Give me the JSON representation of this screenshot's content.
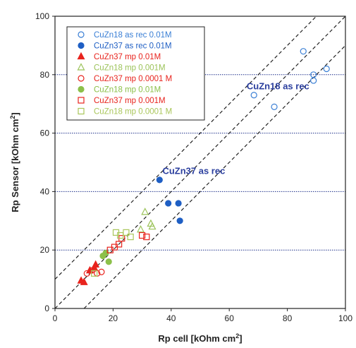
{
  "chart_data": {
    "type": "scatter",
    "xlabel": "Rp cell [kOhm cm",
    "xlabel_sup": "2",
    "xlabel_end": "]",
    "ylabel": "Rp Sensor [kOhm cm",
    "ylabel_sup": "2",
    "ylabel_end": "]",
    "xlim": [
      0,
      100
    ],
    "ylim": [
      0,
      100
    ],
    "xticks": [
      0,
      20,
      40,
      60,
      80,
      100
    ],
    "yticks": [
      0,
      20,
      40,
      60,
      80,
      100
    ],
    "grid": "horizontal dotted at y = 20, 40, 60, 80",
    "legend_position": "top-left",
    "reference_lines": [
      {
        "slope": 1,
        "intercept": 0,
        "style": "dashed"
      },
      {
        "slope": 1,
        "intercept": 10,
        "style": "dashed"
      },
      {
        "slope": 1,
        "intercept": -10,
        "style": "dashed"
      }
    ],
    "annotations": [
      {
        "text": "CuZn18 as rec",
        "x": 66,
        "y": 75
      },
      {
        "text": "CuZn37 as rec",
        "x": 37,
        "y": 46
      }
    ],
    "series": [
      {
        "name": "CuZn18 as rec 0.01M",
        "marker": "circle",
        "filled": false,
        "color": "#3a7fd5",
        "x": [
          68.5,
          75.5,
          85.5,
          89,
          89,
          93.5
        ],
        "y": [
          73,
          69,
          88,
          78,
          80,
          82
        ]
      },
      {
        "name": "CuZn37 as rec 0.01M",
        "marker": "circle",
        "filled": true,
        "color": "#1f5fc4",
        "x": [
          36,
          39,
          42.5,
          43
        ],
        "y": [
          44,
          36,
          36,
          30
        ]
      },
      {
        "name": "CuZn37 mp 0.01M",
        "marker": "triangle",
        "filled": true,
        "color": "#e8231d",
        "x": [
          9,
          10,
          12,
          13.5,
          14
        ],
        "y": [
          9.5,
          9,
          13,
          14,
          15
        ]
      },
      {
        "name": "CuZn18 mp 0.001M",
        "marker": "triangle",
        "filled": false,
        "color": "#9cc35a",
        "x": [
          29.5,
          31,
          33,
          33.5
        ],
        "y": [
          27,
          33,
          29,
          28
        ]
      },
      {
        "name": "CuZn37 mp 0.0001 M",
        "marker": "circle",
        "filled": false,
        "color": "#e8231d",
        "x": [
          11,
          12.5,
          14.5,
          16
        ],
        "y": [
          12,
          13,
          12,
          12.5
        ]
      },
      {
        "name": "CuZn18 mp 0.01M",
        "marker": "circle",
        "filled": true,
        "color": "#8cc04a",
        "x": [
          16.5,
          17.5,
          18.5
        ],
        "y": [
          18,
          19,
          16
        ]
      },
      {
        "name": "CuZn37 mp 0.001M",
        "marker": "square",
        "filled": false,
        "color": "#e8231d",
        "x": [
          19,
          20.5,
          22,
          23,
          30,
          31.5
        ],
        "y": [
          20,
          21,
          22,
          24,
          25,
          24.5
        ]
      },
      {
        "name": "CuZn18 mp 0.0001 M",
        "marker": "square",
        "filled": false,
        "color": "#a9c65a",
        "x": [
          21,
          22.5,
          24.5,
          26,
          13.5
        ],
        "y": [
          26,
          25,
          26,
          24.5,
          12
        ]
      }
    ]
  }
}
